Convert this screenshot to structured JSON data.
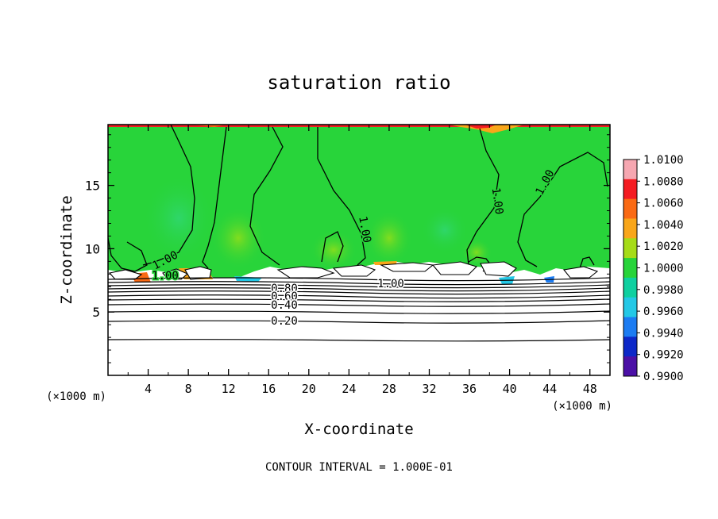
{
  "chart_data": {
    "type": "heatmap",
    "title": "saturation ratio",
    "xlabel": "X-coordinate",
    "ylabel": "Z-coordinate",
    "x_unit": "(×1000 m)",
    "y_unit": "(×1000 m)",
    "xlim": [
      0,
      50
    ],
    "ylim": [
      0,
      19.8
    ],
    "x_ticks": [
      "4",
      "8",
      "12",
      "16",
      "20",
      "24",
      "28",
      "32",
      "36",
      "40",
      "44",
      "48"
    ],
    "y_ticks": [
      "5",
      "10",
      "15"
    ],
    "footnote": "CONTOUR INTERVAL = 1.000E-01",
    "colorbar": {
      "labels": [
        "1.0100",
        "1.0080",
        "1.0060",
        "1.0040",
        "1.0020",
        "1.0000",
        "0.9980",
        "0.9960",
        "0.9940",
        "0.9920",
        "0.9900"
      ],
      "colors": [
        "#f6a7b1",
        "#f41c22",
        "#fa6a14",
        "#f9a61a",
        "#a6dc18",
        "#28d43a",
        "#0fd0a0",
        "#24c8e6",
        "#1c7cf2",
        "#0d28c8",
        "#4b10a6"
      ]
    },
    "contour_labels": [
      "1.00",
      "1.00",
      "1.00",
      "1.00",
      "1.00",
      "1.00",
      "0.80",
      "0.60",
      "0.40",
      "0.20"
    ],
    "fields": {
      "upper_layer": {
        "z_range": [
          8.2,
          19.8
        ],
        "value": "1.0000"
      },
      "lower_layer": {
        "z_range": [
          0,
          8.2
        ],
        "contours": [
          0.2,
          0.4,
          0.6,
          0.8
        ]
      }
    }
  }
}
